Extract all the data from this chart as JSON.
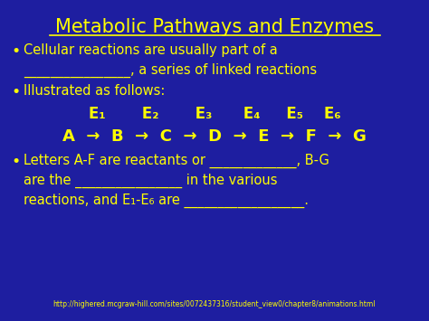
{
  "title": "Metabolic Pathways and Enzymes",
  "background_color": "#1e1ea0",
  "text_color": "#ffff00",
  "title_fontsize": 15,
  "body_fontsize": 10.5,
  "equation_fontsize": 12,
  "small_fontsize": 11,
  "url_text": "http://highered.mcgraw-hill.com/sites/0072437316/student_view0/chapter8/animations.html",
  "url_fontsize": 5.5,
  "bullet1_line1": "Cellular reactions are usually part of a",
  "bullet1_line2": "________________, a series of linked reactions",
  "bullet2_line1": "Illustrated as follows:",
  "enzyme_line": "E₁       E₂       E₃      E₄     E₅    E₆",
  "reaction_line": "A  →  B  →  C  →  D  →  E  →  F  →  G",
  "bullet3_line1": "Letters A-F are reactants or _____________, B-G",
  "bullet3_line2": "are the ________________ in the various",
  "bullet3_line3": "reactions, and E₁-E₆ are __________________."
}
